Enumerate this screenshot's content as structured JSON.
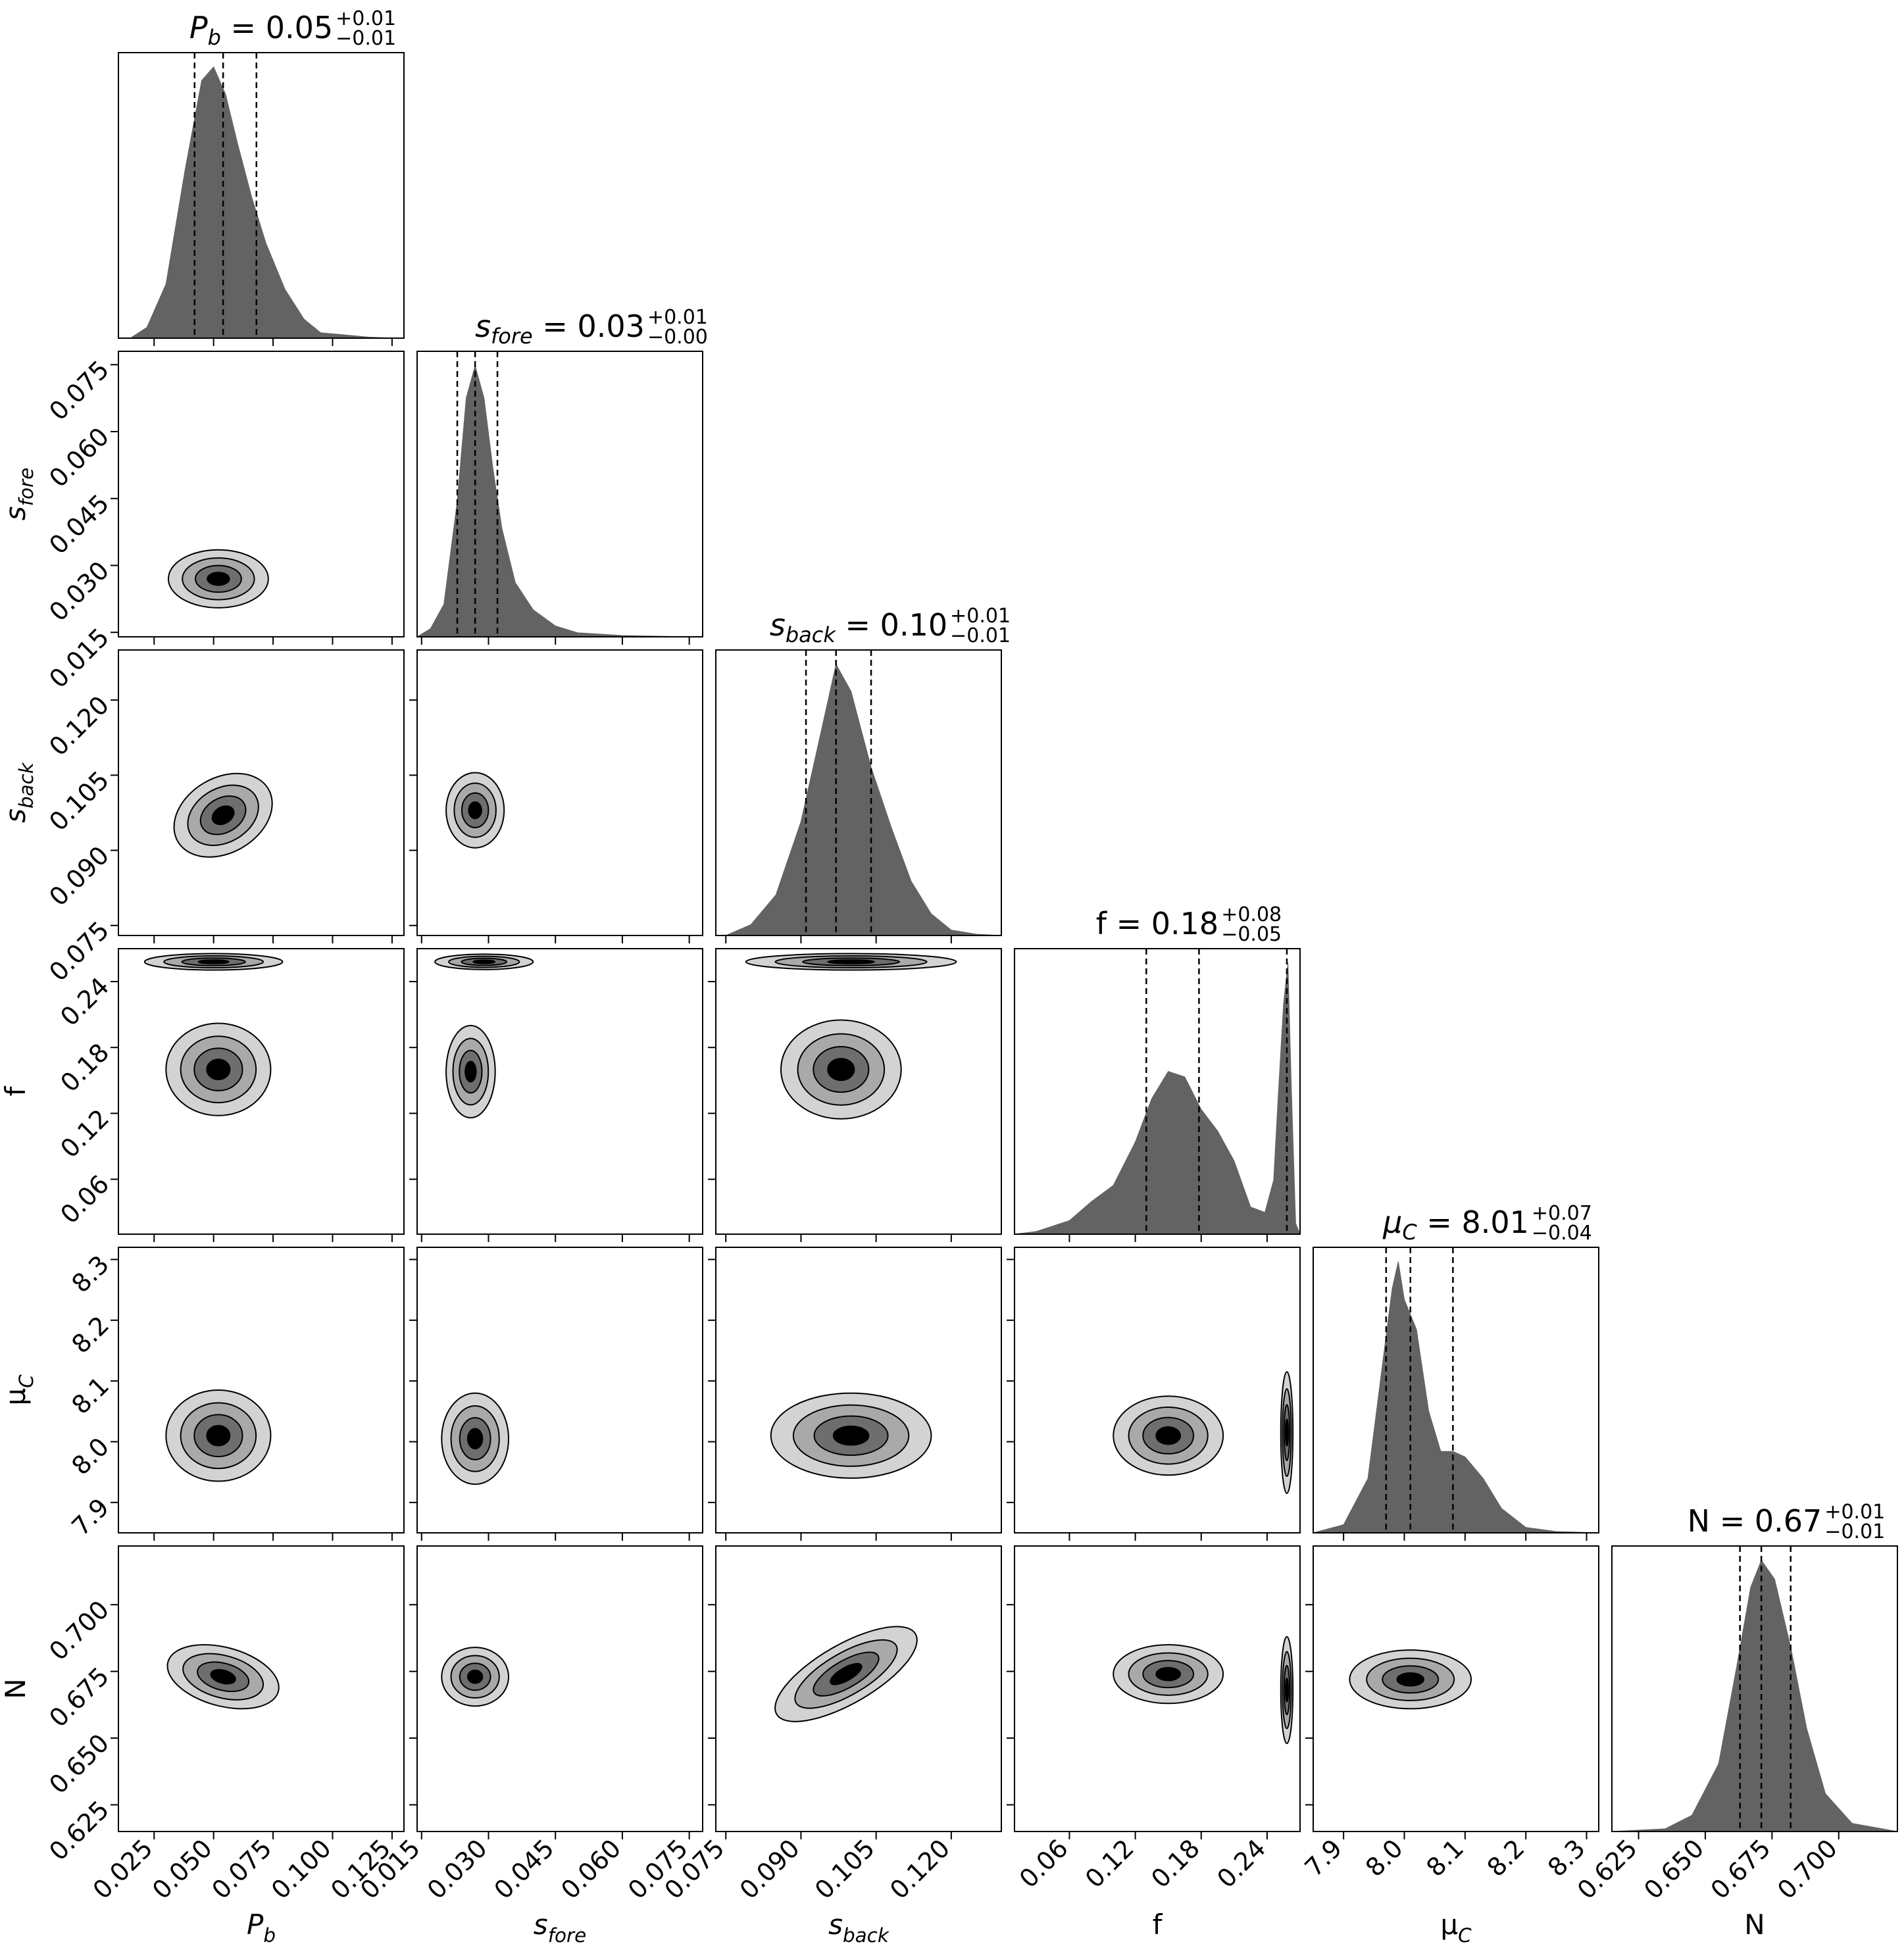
{
  "chart_data": {
    "type": "corner",
    "parameters": [
      {
        "key": "Pb",
        "math": {
          "base": "P",
          "sub": "b"
        },
        "label": "P_b",
        "median": 0.05,
        "plus": "+0.01",
        "minus": "−0.01",
        "median_text": "0.05",
        "quantiles": [
          0.042,
          0.054,
          0.068
        ],
        "range": [
          0.01,
          0.13
        ],
        "ticks": [
          0.025,
          0.05,
          0.075,
          0.1,
          0.125
        ],
        "tick_labels": [
          "0.025",
          "0.050",
          "0.075",
          "0.100",
          "0.125"
        ]
      },
      {
        "key": "sfore",
        "math": {
          "base": "s",
          "sub": "fore"
        },
        "label": "s_fore",
        "median_text": "0.03",
        "plus": "+0.01",
        "minus": "−0.00",
        "quantiles": [
          0.023,
          0.027,
          0.032
        ],
        "range": [
          0.014,
          0.078
        ],
        "ticks": [
          0.015,
          0.03,
          0.045,
          0.06,
          0.075
        ],
        "tick_labels": [
          "0.015",
          "0.030",
          "0.045",
          "0.060",
          "0.075"
        ]
      },
      {
        "key": "sback",
        "math": {
          "base": "s",
          "sub": "back"
        },
        "label": "s_back",
        "median_text": "0.10",
        "plus": "+0.01",
        "minus": "−0.01",
        "quantiles": [
          0.091,
          0.097,
          0.104
        ],
        "range": [
          0.073,
          0.13
        ],
        "ticks": [
          0.075,
          0.09,
          0.105,
          0.12
        ],
        "tick_labels": [
          "0.075",
          "0.090",
          "0.105",
          "0.120"
        ]
      },
      {
        "key": "f",
        "math": {
          "base": "f",
          "sub": ""
        },
        "label": "f",
        "median_text": "0.18",
        "plus": "+0.08",
        "minus": "−0.05",
        "quantiles": [
          0.13,
          0.178,
          0.258
        ],
        "range": [
          0.01,
          0.27
        ],
        "ticks": [
          0.06,
          0.12,
          0.18,
          0.24
        ],
        "tick_labels": [
          "0.06",
          "0.12",
          "0.18",
          "0.24"
        ]
      },
      {
        "key": "muC",
        "math": {
          "base": "μ",
          "sub": "C"
        },
        "label": "μ_C",
        "median_text": "8.01",
        "plus": "+0.07",
        "minus": "−0.04",
        "quantiles": [
          7.97,
          8.01,
          8.08
        ],
        "range": [
          7.85,
          8.32
        ],
        "ticks": [
          7.9,
          8.0,
          8.1,
          8.2,
          8.3
        ],
        "tick_labels": [
          "7.9",
          "8.0",
          "8.1",
          "8.2",
          "8.3"
        ]
      },
      {
        "key": "N",
        "math": {
          "base": "N",
          "sub": ""
        },
        "label": "N",
        "median_text": "0.67",
        "plus": "+0.01",
        "minus": "−0.01",
        "quantiles": [
          0.663,
          0.671,
          0.682
        ],
        "range": [
          0.615,
          0.722
        ],
        "ticks": [
          0.625,
          0.65,
          0.675,
          0.7
        ],
        "tick_labels": [
          "0.625",
          "0.650",
          "0.675",
          "0.700"
        ]
      }
    ],
    "marginals": [
      {
        "param": "Pb",
        "x": [
          0.015,
          0.022,
          0.03,
          0.038,
          0.045,
          0.05,
          0.055,
          0.06,
          0.066,
          0.072,
          0.08,
          0.088,
          0.095,
          0.105,
          0.115,
          0.125
        ],
        "density": [
          0.0,
          0.04,
          0.2,
          0.62,
          0.95,
          1.0,
          0.9,
          0.72,
          0.52,
          0.35,
          0.18,
          0.07,
          0.02,
          0.012,
          0.004,
          0.0
        ]
      },
      {
        "param": "sfore",
        "x": [
          0.014,
          0.017,
          0.02,
          0.023,
          0.025,
          0.027,
          0.029,
          0.031,
          0.033,
          0.036,
          0.04,
          0.045,
          0.05,
          0.06,
          0.075
        ],
        "density": [
          0.0,
          0.03,
          0.12,
          0.5,
          0.88,
          1.0,
          0.88,
          0.62,
          0.4,
          0.2,
          0.1,
          0.04,
          0.015,
          0.005,
          0.0
        ]
      },
      {
        "param": "sback",
        "x": [
          0.075,
          0.08,
          0.085,
          0.09,
          0.094,
          0.097,
          0.1,
          0.104,
          0.108,
          0.112,
          0.116,
          0.12,
          0.125,
          0.13
        ],
        "density": [
          0.0,
          0.04,
          0.15,
          0.42,
          0.75,
          1.0,
          0.9,
          0.62,
          0.4,
          0.2,
          0.08,
          0.02,
          0.005,
          0.0
        ]
      },
      {
        "param": "f",
        "x": [
          0.01,
          0.03,
          0.06,
          0.08,
          0.1,
          0.12,
          0.135,
          0.15,
          0.165,
          0.18,
          0.195,
          0.21,
          0.225,
          0.238,
          0.246,
          0.25,
          0.255,
          0.259,
          0.262,
          0.266,
          0.27
        ],
        "density": [
          0.0,
          0.01,
          0.05,
          0.12,
          0.18,
          0.34,
          0.5,
          0.6,
          0.58,
          0.46,
          0.38,
          0.27,
          0.1,
          0.08,
          0.2,
          0.5,
          0.85,
          1.0,
          0.55,
          0.04,
          0.0
        ]
      },
      {
        "param": "muC",
        "x": [
          7.85,
          7.9,
          7.94,
          7.96,
          7.98,
          7.99,
          8.0,
          8.02,
          8.04,
          8.06,
          8.08,
          8.1,
          8.13,
          8.16,
          8.2,
          8.25,
          8.32
        ],
        "density": [
          0.0,
          0.03,
          0.2,
          0.55,
          0.9,
          1.0,
          0.86,
          0.75,
          0.45,
          0.3,
          0.3,
          0.28,
          0.2,
          0.09,
          0.02,
          0.005,
          0.0
        ]
      },
      {
        "param": "N",
        "x": [
          0.615,
          0.635,
          0.645,
          0.655,
          0.662,
          0.667,
          0.671,
          0.676,
          0.682,
          0.688,
          0.695,
          0.705,
          0.722
        ],
        "density": [
          0.0,
          0.01,
          0.06,
          0.25,
          0.62,
          0.9,
          1.0,
          0.93,
          0.68,
          0.38,
          0.14,
          0.03,
          0.0
        ]
      }
    ],
    "pairs": [
      {
        "row": "sfore",
        "col": "Pb",
        "blobs": [
          {
            "cx": 0.052,
            "cy": 0.027,
            "rx": 0.021,
            "ry": 0.0065,
            "rot": 0
          }
        ]
      },
      {
        "row": "sback",
        "col": "Pb",
        "blobs": [
          {
            "cx": 0.054,
            "cy": 0.097,
            "rx": 0.022,
            "ry": 0.0075,
            "rot": -30
          }
        ]
      },
      {
        "row": "sback",
        "col": "sfore",
        "blobs": [
          {
            "cx": 0.027,
            "cy": 0.098,
            "rx": 0.0065,
            "ry": 0.0075,
            "rot": 0
          }
        ]
      },
      {
        "row": "f",
        "col": "Pb",
        "blobs": [
          {
            "cx": 0.05,
            "cy": 0.258,
            "rx": 0.029,
            "ry": 0.0075,
            "rot": 0
          },
          {
            "cx": 0.052,
            "cy": 0.16,
            "rx": 0.022,
            "ry": 0.042,
            "rot": 0
          }
        ]
      },
      {
        "row": "f",
        "col": "sfore",
        "blobs": [
          {
            "cx": 0.029,
            "cy": 0.258,
            "rx": 0.011,
            "ry": 0.007,
            "rot": 0
          },
          {
            "cx": 0.026,
            "cy": 0.158,
            "rx": 0.0055,
            "ry": 0.042,
            "rot": 0
          }
        ]
      },
      {
        "row": "f",
        "col": "sback",
        "blobs": [
          {
            "cx": 0.1,
            "cy": 0.258,
            "rx": 0.021,
            "ry": 0.0075,
            "rot": 0
          },
          {
            "cx": 0.098,
            "cy": 0.16,
            "rx": 0.012,
            "ry": 0.045,
            "rot": 0
          }
        ]
      },
      {
        "row": "muC",
        "col": "Pb",
        "blobs": [
          {
            "cx": 0.052,
            "cy": 8.01,
            "rx": 0.022,
            "ry": 0.075,
            "rot": 0
          }
        ]
      },
      {
        "row": "muC",
        "col": "sfore",
        "blobs": [
          {
            "cx": 0.027,
            "cy": 8.005,
            "rx": 0.0075,
            "ry": 0.075,
            "rot": 0
          }
        ]
      },
      {
        "row": "muC",
        "col": "sback",
        "blobs": [
          {
            "cx": 0.1,
            "cy": 8.01,
            "rx": 0.016,
            "ry": 0.07,
            "rot": 0
          }
        ]
      },
      {
        "row": "muC",
        "col": "f",
        "blobs": [
          {
            "cx": 0.15,
            "cy": 8.01,
            "rx": 0.05,
            "ry": 0.065,
            "rot": 0
          },
          {
            "cx": 0.258,
            "cy": 8.015,
            "rx": 0.0055,
            "ry": 0.1,
            "rot": 0
          }
        ]
      },
      {
        "row": "N",
        "col": "Pb",
        "blobs": [
          {
            "cx": 0.054,
            "cy": 0.673,
            "rx": 0.024,
            "ry": 0.011,
            "rot": 15
          }
        ]
      },
      {
        "row": "N",
        "col": "sfore",
        "blobs": [
          {
            "cx": 0.027,
            "cy": 0.673,
            "rx": 0.0075,
            "ry": 0.011,
            "rot": 0
          }
        ]
      },
      {
        "row": "N",
        "col": "sback",
        "blobs": [
          {
            "cx": 0.099,
            "cy": 0.674,
            "rx": 0.016,
            "ry": 0.011,
            "rot": -30
          }
        ]
      },
      {
        "row": "N",
        "col": "f",
        "blobs": [
          {
            "cx": 0.15,
            "cy": 0.674,
            "rx": 0.05,
            "ry": 0.011,
            "rot": 0
          },
          {
            "cx": 0.258,
            "cy": 0.668,
            "rx": 0.0055,
            "ry": 0.02,
            "rot": 0
          }
        ]
      },
      {
        "row": "N",
        "col": "muC",
        "blobs": [
          {
            "cx": 8.01,
            "cy": 0.672,
            "rx": 0.1,
            "ry": 0.011,
            "rot": 0
          }
        ]
      }
    ],
    "contour_fills": [
      "#d3d3d3",
      "#a9a9a9",
      "#6e6e6e",
      "#000000"
    ],
    "hist_fill": "#636363",
    "grid": false
  }
}
